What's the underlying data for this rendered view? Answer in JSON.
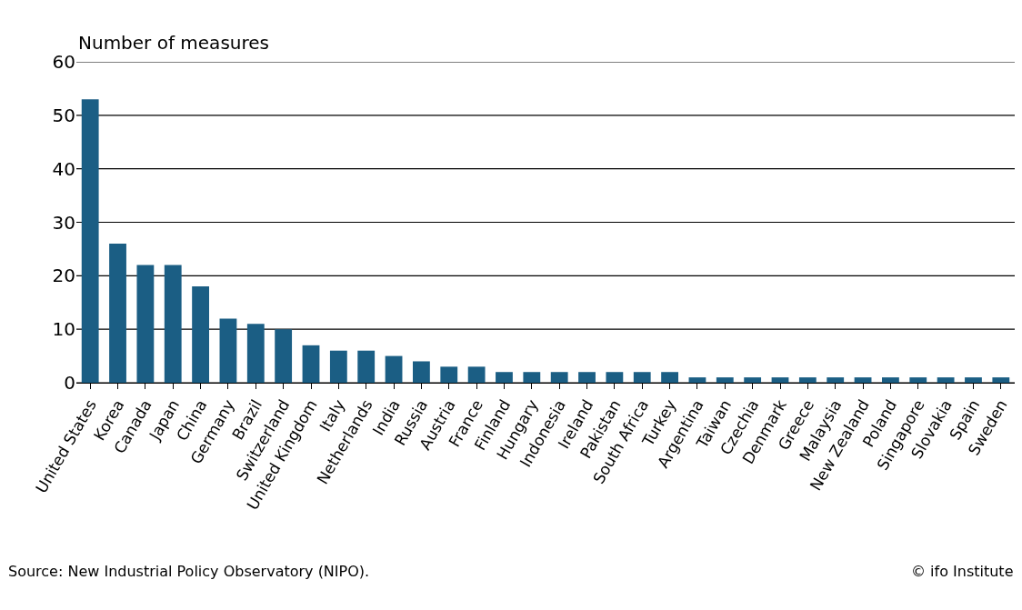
{
  "chart_data": {
    "type": "bar",
    "ylabel": "Number of measures",
    "categories": [
      "United States",
      "Korea",
      "Canada",
      "Japan",
      "China",
      "Germany",
      "Brazil",
      "Switzerland",
      "United Kingdom",
      "Italy",
      "Netherlands",
      "India",
      "Russia",
      "Austria",
      "France",
      "Finland",
      "Hungary",
      "Indonesia",
      "Ireland",
      "Pakistan",
      "South Africa",
      "Turkey",
      "Argentina",
      "Taiwan",
      "Czechia",
      "Denmark",
      "Greece",
      "Malaysia",
      "New Zealand",
      "Poland",
      "Singapore",
      "Slovakia",
      "Spain",
      "Sweden"
    ],
    "values": [
      53,
      26,
      22,
      22,
      18,
      12,
      11,
      10,
      7,
      6,
      6,
      5,
      4,
      3,
      3,
      2,
      2,
      2,
      2,
      2,
      2,
      2,
      1,
      1,
      1,
      1,
      1,
      1,
      1,
      1,
      1,
      1,
      1,
      1
    ],
    "color": "#1b5e84",
    "ylim": [
      0,
      60
    ],
    "yticks": [
      0,
      10,
      20,
      30,
      40,
      50,
      60
    ],
    "grid": "y",
    "annotations": [
      "Source: New Industrial Policy Observatory (NIPO).",
      "© ifo Institute"
    ]
  }
}
